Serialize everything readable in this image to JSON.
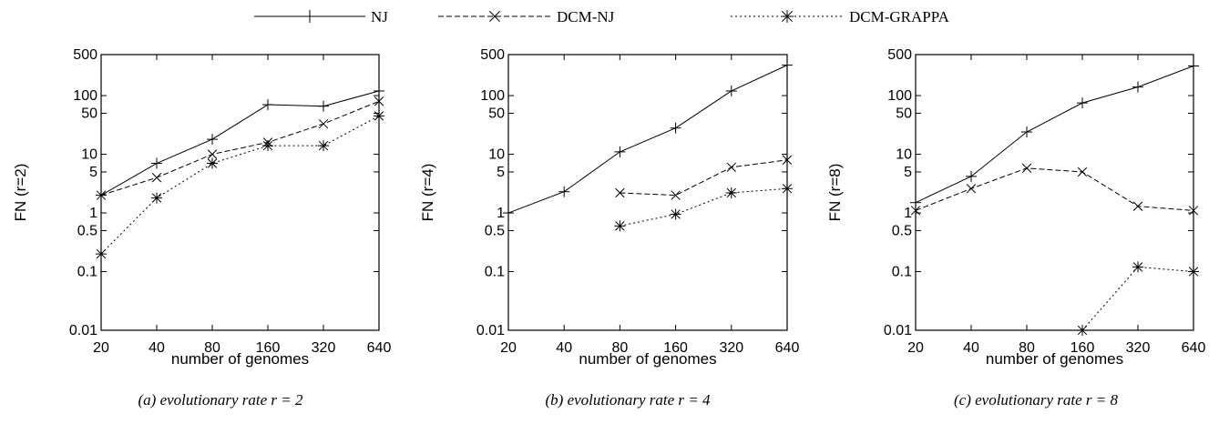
{
  "legend": [
    {
      "name": "NJ",
      "style": "solid",
      "marker": "plus"
    },
    {
      "name": "DCM-NJ",
      "style": "dashed",
      "marker": "cross"
    },
    {
      "name": "DCM-GRAPPA",
      "style": "dotted",
      "marker": "star"
    }
  ],
  "chart_data": [
    {
      "type": "line",
      "title": "",
      "caption_prefix": "(a) evolutionary rate",
      "caption_math": "r = 2",
      "xlabel": "number of genomes",
      "ylabel": "FN (r=2)",
      "x_scale": "log",
      "y_scale": "log",
      "xlim": [
        20,
        640
      ],
      "ylim": [
        0.01,
        500
      ],
      "x_ticks": [
        "20",
        "40",
        "80",
        "160",
        "320",
        "640"
      ],
      "y_ticks": [
        "0.01",
        "0.1",
        "0.5",
        "1",
        "5",
        "10",
        "50",
        "100",
        "500"
      ],
      "x": [
        20,
        40,
        80,
        160,
        320,
        640
      ],
      "series": [
        {
          "name": "NJ",
          "values": [
            2,
            7,
            18,
            70,
            66,
            120
          ]
        },
        {
          "name": "DCM-NJ",
          "values": [
            2,
            4,
            10,
            16,
            33,
            80
          ]
        },
        {
          "name": "DCM-GRAPPA",
          "values": [
            0.2,
            1.8,
            7,
            14,
            14,
            45
          ]
        }
      ]
    },
    {
      "type": "line",
      "title": "",
      "caption_prefix": "(b) evolutionary rate",
      "caption_math": "r = 4",
      "xlabel": "number of genomes",
      "ylabel": "FN (r=4)",
      "x_scale": "log",
      "y_scale": "log",
      "xlim": [
        20,
        640
      ],
      "ylim": [
        0.01,
        500
      ],
      "x_ticks": [
        "20",
        "40",
        "80",
        "160",
        "320",
        "640"
      ],
      "y_ticks": [
        "0.01",
        "0.1",
        "0.5",
        "1",
        "5",
        "10",
        "50",
        "100",
        "500"
      ],
      "x": [
        20,
        40,
        80,
        160,
        320,
        640
      ],
      "series": [
        {
          "name": "NJ",
          "values": [
            1,
            2.3,
            11,
            28,
            120,
            330
          ]
        },
        {
          "name": "DCM-NJ",
          "values": [
            null,
            null,
            2.2,
            2,
            6,
            8
          ]
        },
        {
          "name": "DCM-GRAPPA",
          "values": [
            null,
            null,
            0.6,
            0.95,
            2.2,
            2.6
          ]
        }
      ]
    },
    {
      "type": "line",
      "title": "",
      "caption_prefix": "(c) evolutionary rate",
      "caption_math": "r = 8",
      "xlabel": "number of genomes",
      "ylabel": "FN (r=8)",
      "x_scale": "log",
      "y_scale": "log",
      "xlim": [
        20,
        640
      ],
      "ylim": [
        0.01,
        500
      ],
      "x_ticks": [
        "20",
        "40",
        "80",
        "160",
        "320",
        "640"
      ],
      "y_ticks": [
        "0.01",
        "0.1",
        "0.5",
        "1",
        "5",
        "10",
        "50",
        "100",
        "500"
      ],
      "x": [
        20,
        40,
        80,
        160,
        320,
        640
      ],
      "series": [
        {
          "name": "NJ",
          "values": [
            1.5,
            4.2,
            24,
            75,
            140,
            320
          ]
        },
        {
          "name": "DCM-NJ",
          "values": [
            1.1,
            2.6,
            5.8,
            5,
            1.3,
            1.1
          ]
        },
        {
          "name": "DCM-GRAPPA",
          "values": [
            null,
            null,
            null,
            0.01,
            0.12,
            0.1
          ]
        }
      ]
    }
  ]
}
